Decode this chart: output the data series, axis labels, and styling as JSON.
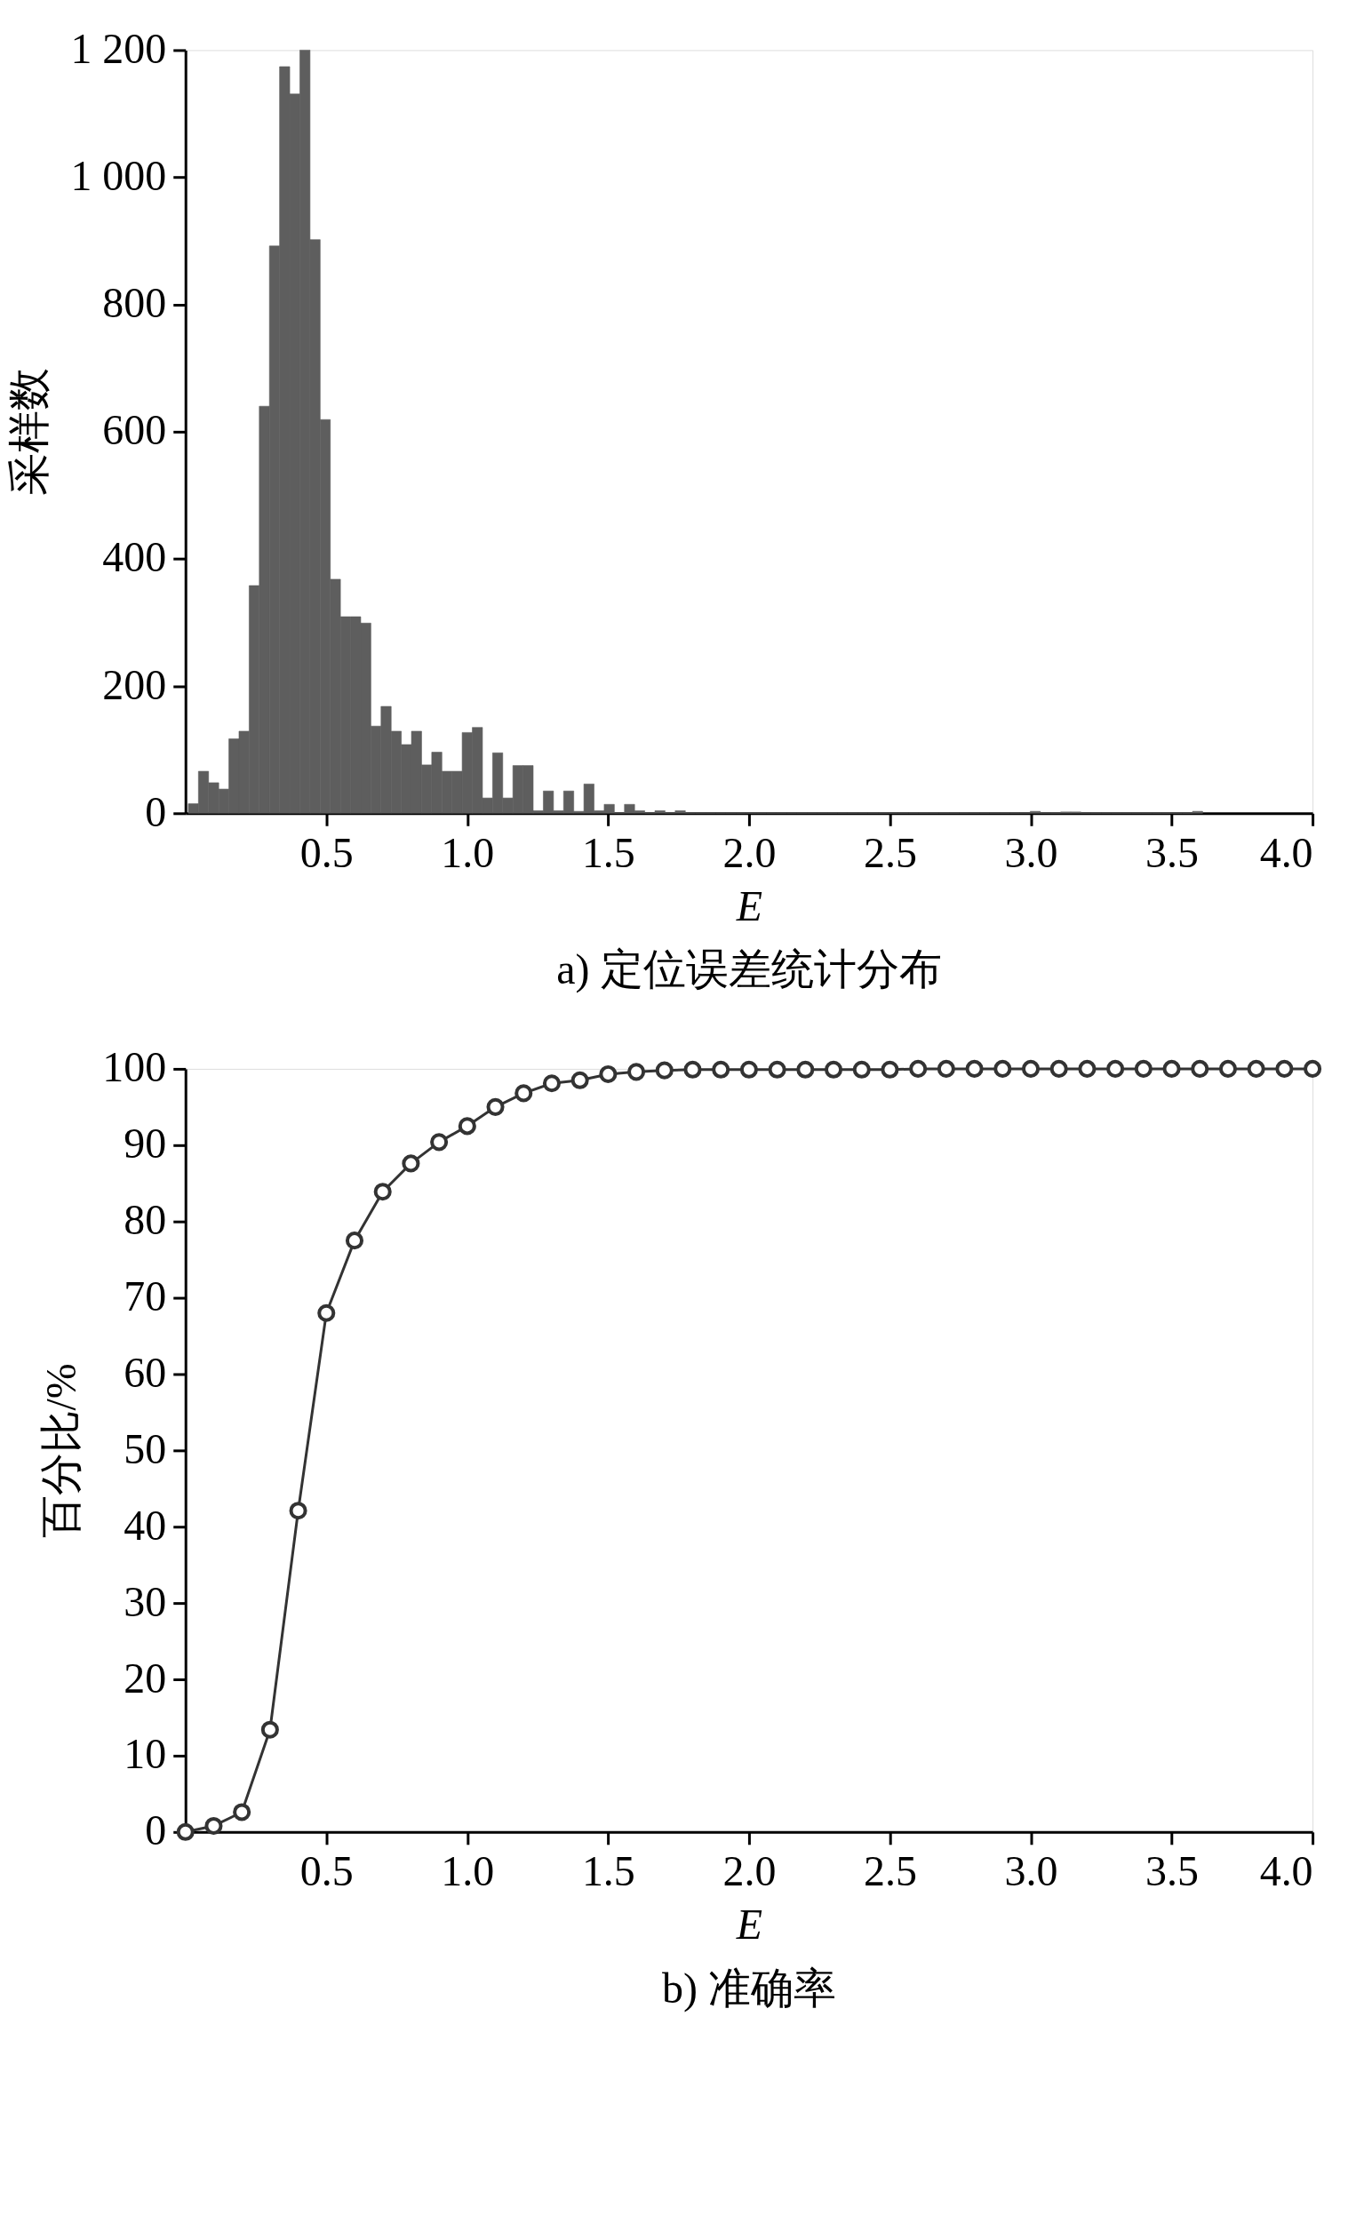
{
  "chart_data": [
    {
      "type": "histogram",
      "title": "a) 定位误差统计分布",
      "xlabel": "E",
      "ylabel": "采样数",
      "bins": [
        0.01,
        0.046,
        0.082,
        0.118,
        0.154,
        0.19,
        0.226,
        0.262,
        0.298,
        0.334,
        0.37,
        0.406,
        0.442,
        0.478,
        0.514,
        0.55,
        0.586,
        0.622,
        0.658,
        0.694,
        0.73,
        0.766,
        0.802,
        0.838,
        0.874,
        0.91,
        0.946,
        0.982,
        1.018,
        1.054,
        1.09,
        1.126,
        1.162,
        1.198,
        1.234,
        1.27,
        1.306,
        1.342,
        1.378,
        1.414,
        1.45,
        1.486,
        1.522,
        1.558,
        1.594,
        1.63,
        1.666,
        1.702,
        1.738,
        1.774,
        1.81,
        1.846,
        1.882,
        1.918,
        1.954,
        1.99,
        2.026,
        2.062,
        2.098,
        2.134,
        2.17,
        2.206,
        2.242,
        2.278,
        2.314,
        2.35,
        2.386,
        2.422,
        2.458,
        2.494,
        2.53,
        2.566,
        2.602,
        2.638,
        2.674,
        2.71,
        2.746,
        2.782,
        2.818,
        2.854,
        2.89,
        2.926,
        2.962,
        2.998,
        3.034,
        3.07,
        3.106,
        3.142,
        3.178,
        3.214,
        3.25,
        3.286,
        3.322,
        3.358,
        3.394,
        3.43,
        3.466,
        3.502,
        3.538,
        3.574,
        3.61
      ],
      "values": [
        15,
        66,
        48,
        38,
        117,
        129,
        358,
        640,
        892,
        1174,
        1131,
        1200,
        902,
        619,
        368,
        309,
        309,
        299,
        137,
        168,
        129,
        108,
        129,
        76,
        96,
        66,
        66,
        127,
        135,
        24,
        95,
        24,
        75,
        75,
        4,
        35,
        4,
        35,
        3,
        46,
        4,
        14,
        0,
        14,
        4,
        0,
        4,
        0,
        4,
        0,
        0,
        0,
        0,
        0,
        0,
        0,
        0,
        0,
        0,
        0,
        0,
        0,
        0,
        0,
        0,
        0,
        0,
        0,
        0,
        0,
        0,
        0,
        0,
        0,
        0,
        0,
        0,
        0,
        0,
        0,
        0,
        0,
        0,
        3,
        0,
        0,
        2,
        2,
        0,
        0,
        0,
        0,
        0,
        0,
        0,
        0,
        0,
        0,
        0,
        3
      ],
      "color": "#5e5e5e",
      "xlim": [
        0,
        4
      ],
      "xticks": [
        0.5,
        {
          "value": 1,
          "label": "1.0"
        },
        1.5,
        {
          "value": 2,
          "label": "2.0"
        },
        2.5,
        {
          "value": 3,
          "label": "3.0"
        },
        3.5,
        {
          "value": 4,
          "label": "4.0"
        }
      ],
      "ylim": [
        0,
        1200
      ],
      "yticks": [
        0,
        200,
        400,
        600,
        800,
        {
          "value": 1000,
          "label": "1 000"
        },
        {
          "value": 1200,
          "label": "1 200"
        }
      ],
      "grid": false
    },
    {
      "type": "line",
      "title": "b) 准确率",
      "xlabel": "E",
      "ylabel": "百分比/%",
      "x": [
        0,
        0.1,
        0.2,
        0.3,
        0.4,
        0.5,
        0.6,
        0.7,
        0.8,
        0.9,
        1.0,
        1.1,
        1.2,
        1.3,
        1.4,
        1.5,
        1.6,
        1.7,
        1.8,
        1.9,
        2.0,
        2.1,
        2.2,
        2.3,
        2.4,
        2.5,
        2.6,
        2.7,
        2.8,
        2.9,
        3.0,
        3.1,
        3.2,
        3.3,
        3.4,
        3.5,
        3.6,
        3.7,
        3.8,
        3.9,
        4.0
      ],
      "series": [
        {
          "color": "#333333",
          "values": [
            0,
            0.8,
            2.6,
            13.4,
            42.1,
            68.0,
            77.5,
            83.9,
            87.6,
            90.4,
            92.5,
            95.0,
            96.8,
            98.1,
            98.5,
            99.3,
            99.6,
            99.8,
            99.9,
            99.9,
            99.9,
            99.9,
            99.9,
            99.9,
            99.9,
            99.9,
            100,
            100,
            100,
            100,
            100,
            100,
            100,
            100,
            100,
            100,
            100,
            100,
            100,
            100,
            100
          ]
        }
      ],
      "xlim": [
        0,
        4
      ],
      "xticks": [
        0.5,
        {
          "value": 1,
          "label": "1.0"
        },
        1.5,
        {
          "value": 2,
          "label": "2.0"
        },
        2.5,
        {
          "value": 3,
          "label": "3.0"
        },
        3.5,
        {
          "value": 4,
          "label": "4.0"
        }
      ],
      "ylim": [
        0,
        100
      ],
      "yticks": [
        0,
        10,
        20,
        30,
        40,
        50,
        60,
        70,
        80,
        90,
        100
      ],
      "grid": false,
      "marker": "circle",
      "line_style": "solid"
    }
  ]
}
